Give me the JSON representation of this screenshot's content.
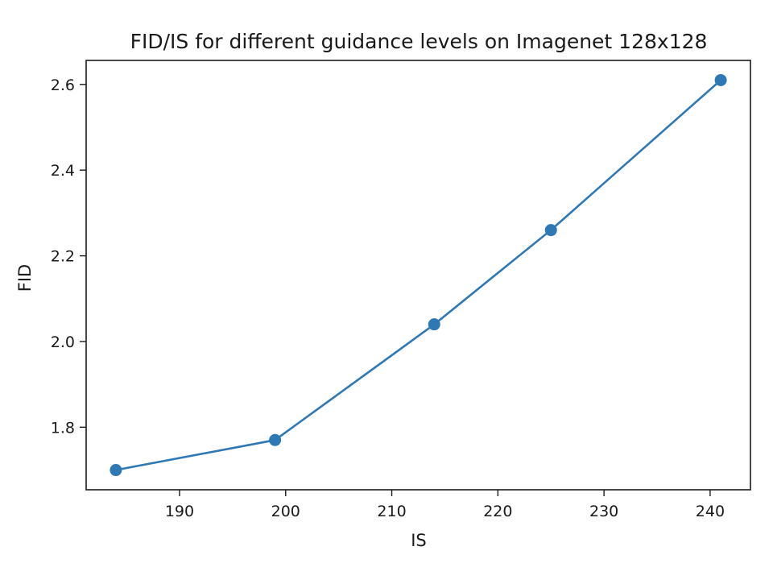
{
  "chart_data": {
    "type": "line",
    "title": "FID/IS for different guidance levels on Imagenet 128x128",
    "xlabel": "IS",
    "ylabel": "FID",
    "xlim": [
      181.2,
      243.8
    ],
    "ylim": [
      1.654,
      2.656
    ],
    "xticks": [
      190,
      200,
      210,
      220,
      230,
      240
    ],
    "yticks": [
      1.8,
      2.0,
      2.2,
      2.4,
      2.6
    ],
    "x": [
      184,
      199,
      214,
      225,
      241
    ],
    "series": [
      {
        "values": [
          1.7,
          1.77,
          2.04,
          2.26,
          2.61
        ],
        "color": "#2e78b5"
      }
    ],
    "grid": false,
    "markers": "circle"
  }
}
